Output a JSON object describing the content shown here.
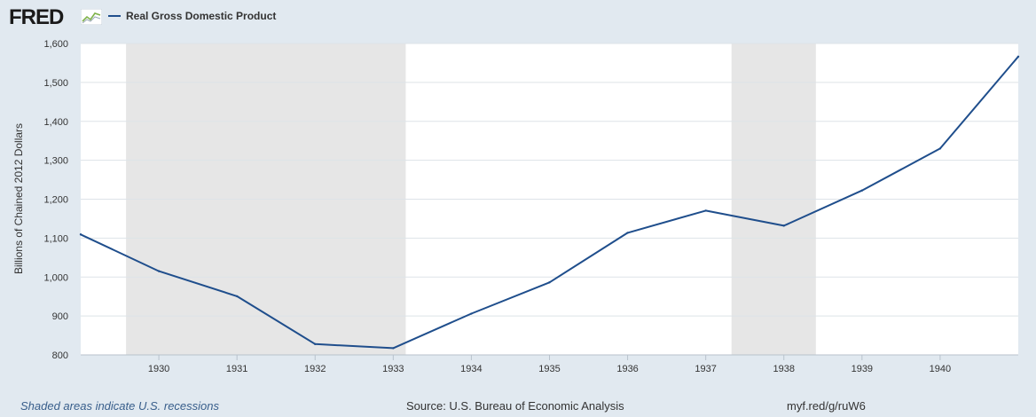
{
  "header": {
    "logo": "FRED",
    "logo_icon": "line-chart-icon",
    "legend_label": "Real Gross Domestic Product",
    "series_color": "#1f4e8c"
  },
  "footer": {
    "recession_note": "Shaded areas indicate U.S. recessions",
    "source": "Source: U.S. Bureau of Economic Analysis",
    "short_url": "myf.red/g/ruW6"
  },
  "chart_data": {
    "type": "line",
    "title": "",
    "xlabel": "",
    "ylabel": "Billions of Chained 2012 Dollars",
    "x": [
      1929,
      1930,
      1931,
      1932,
      1933,
      1934,
      1935,
      1936,
      1937,
      1938,
      1939,
      1940,
      1941
    ],
    "series": [
      {
        "name": "Real Gross Domestic Product",
        "values": [
          1109.4,
          1015.1,
          950.6,
          827.7,
          817.3,
          905.9,
          986.3,
          1113.6,
          1170.6,
          1131.9,
          1222.3,
          1330.1,
          1566.3
        ]
      }
    ],
    "x_ticks": [
      "1930",
      "1931",
      "1932",
      "1933",
      "1934",
      "1935",
      "1936",
      "1937",
      "1938",
      "1939",
      "1940"
    ],
    "y_ticks": [
      "800",
      "900",
      "1,000",
      "1,100",
      "1,200",
      "1,300",
      "1,400",
      "1,500",
      "1,600"
    ],
    "xlim": [
      1929,
      1941
    ],
    "ylim": [
      800,
      1600
    ],
    "grid": true,
    "recessions": [
      [
        1929.58,
        1933.16
      ],
      [
        1937.33,
        1938.41
      ]
    ],
    "recession_color": "#e6e6e6",
    "line_color": "#1f4e8c"
  }
}
